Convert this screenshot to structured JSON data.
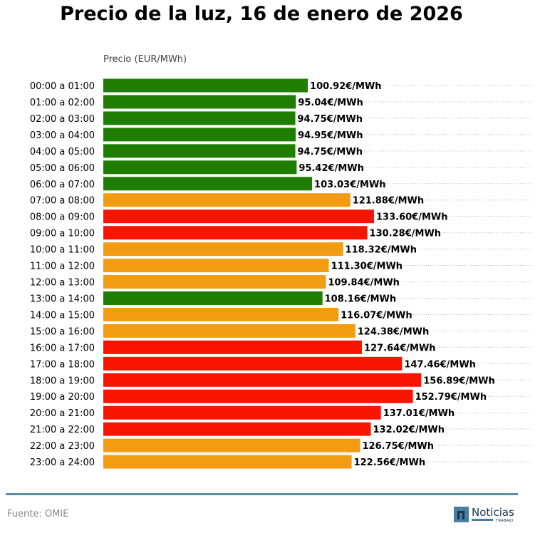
{
  "chart_data": {
    "type": "bar",
    "orientation": "horizontal",
    "title": "Precio de la luz, 16 de enero de 2026",
    "xlabel": "Precio (EUR/MWh)",
    "unit_suffix": "€/MWh",
    "xlim": [
      0,
      212
    ],
    "grid": "dotted horizontal",
    "categories": [
      "00:00 a 01:00",
      "01:00 a 02:00",
      "02:00 a 03:00",
      "03:00 a 04:00",
      "04:00 a 05:00",
      "05:00 a 06:00",
      "06:00 a 07:00",
      "07:00 a 08:00",
      "08:00 a 09:00",
      "09:00 a 10:00",
      "10:00 a 11:00",
      "11:00 a 12:00",
      "12:00 a 13:00",
      "13:00 a 14:00",
      "14:00 a 15:00",
      "15:00 a 16:00",
      "16:00 a 17:00",
      "17:00 a 18:00",
      "18:00 a 19:00",
      "19:00 a 20:00",
      "20:00 a 21:00",
      "21:00 a 22:00",
      "22:00 a 23:00",
      "23:00 a 24:00"
    ],
    "values": [
      100.92,
      95.04,
      94.75,
      94.95,
      94.75,
      95.42,
      103.03,
      121.88,
      133.6,
      130.28,
      118.32,
      111.3,
      109.84,
      108.16,
      116.07,
      124.38,
      127.64,
      147.46,
      156.89,
      152.79,
      137.01,
      132.02,
      126.75,
      122.56
    ],
    "bar_colors": [
      "g",
      "g",
      "g",
      "g",
      "g",
      "g",
      "g",
      "o",
      "r",
      "r",
      "o",
      "o",
      "o",
      "g",
      "o",
      "o",
      "r",
      "r",
      "r",
      "r",
      "r",
      "r",
      "o",
      "o"
    ],
    "palette": {
      "g": "#1f7d00",
      "o": "#f39c12",
      "r": "#f91400"
    }
  },
  "footer": {
    "source": "Fuente: OMIE",
    "logo_text": "Noticias",
    "logo_subtext": "TRABAJO"
  }
}
